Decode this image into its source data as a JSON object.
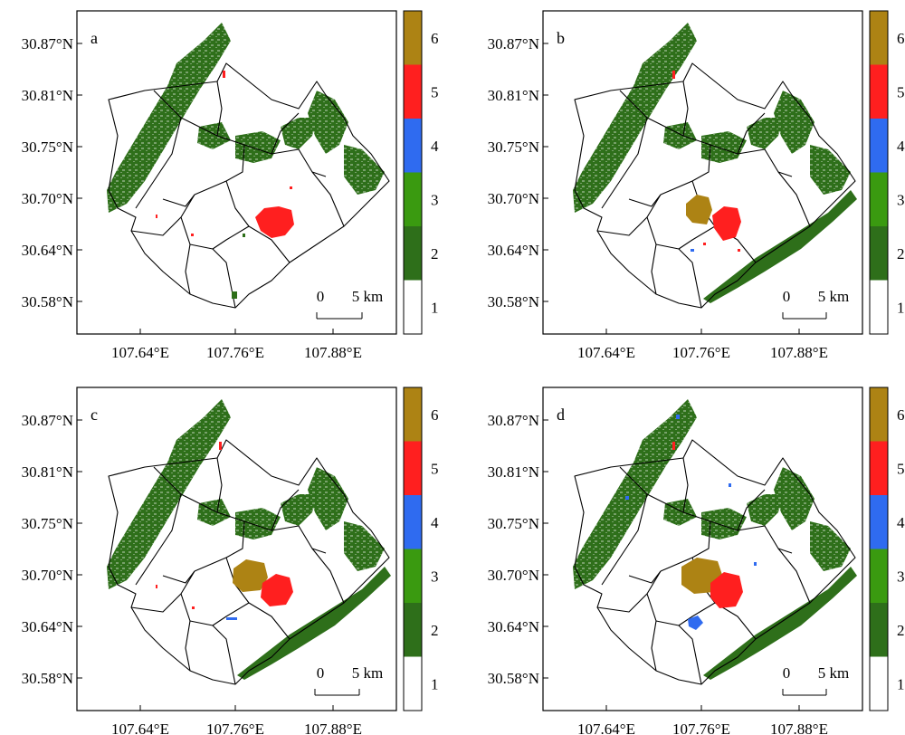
{
  "panels": [
    {
      "label": "a"
    },
    {
      "label": "b"
    },
    {
      "label": "c"
    },
    {
      "label": "d"
    }
  ],
  "axes": {
    "lat_ticks": [
      "30.87°N",
      "30.81°N",
      "30.75°N",
      "30.70°N",
      "30.64°N",
      "30.58°N"
    ],
    "lon_ticks": [
      "107.64°E",
      "107.76°E",
      "107.88°E"
    ]
  },
  "scalebar": {
    "zero": "0",
    "label": "5 km"
  },
  "legend": {
    "classes": [
      {
        "label": "1",
        "color": "#ffffff"
      },
      {
        "label": "2",
        "color": "#2e6f1a"
      },
      {
        "label": "3",
        "color": "#3a9a10"
      },
      {
        "label": "4",
        "color": "#2f6bf0"
      },
      {
        "label": "5",
        "color": "#ff1f1f"
      },
      {
        "label": "6",
        "color": "#ad8314"
      }
    ]
  },
  "colors": {
    "class2_dark_green": "#2e6f1a",
    "class4_blue": "#2f6bf0",
    "class5_red": "#ff1f1f",
    "class6_brown": "#ad8314"
  }
}
